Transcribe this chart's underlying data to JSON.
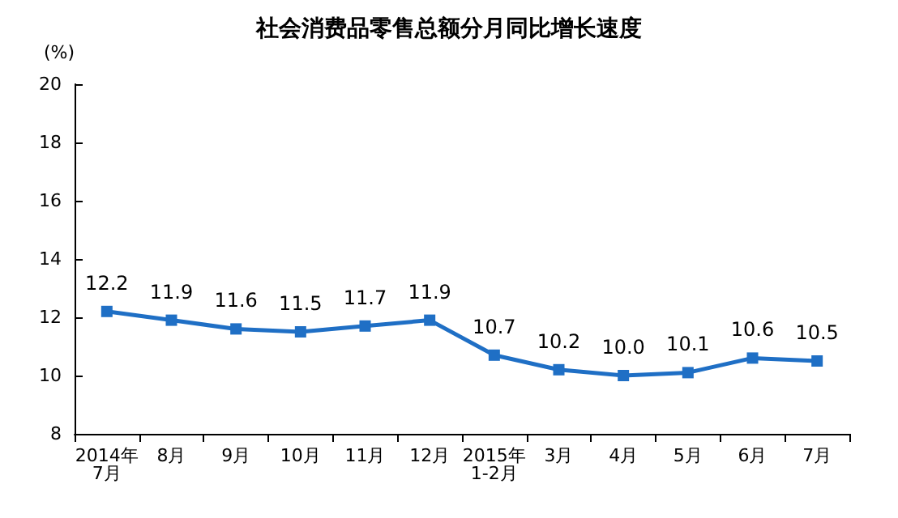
{
  "chart_data": {
    "type": "line",
    "title": "社会消费品零售总额分月同比增长速度",
    "ylabel": "(%)",
    "categories": [
      "2014年\n7月",
      "8月",
      "9月",
      "10月",
      "11月",
      "12月",
      "2015年\n1-2月",
      "3月",
      "4月",
      "5月",
      "6月",
      "7月"
    ],
    "series": [
      {
        "color": "#1f6fc5",
        "values": [
          12.2,
          11.9,
          11.6,
          11.5,
          11.7,
          11.9,
          10.7,
          10.2,
          10.0,
          10.1,
          10.6,
          10.5
        ],
        "value_labels": [
          "12.2",
          "11.9",
          "11.6",
          "11.5",
          "11.7",
          "11.9",
          "10.7",
          "10.2",
          "10.0",
          "10.1",
          "10.6",
          "10.5"
        ]
      }
    ],
    "ylim": [
      8,
      20
    ],
    "yticks": [
      8,
      10,
      12,
      14,
      16,
      18,
      20
    ],
    "grid": false,
    "marker": "square",
    "line_style": "solid"
  }
}
